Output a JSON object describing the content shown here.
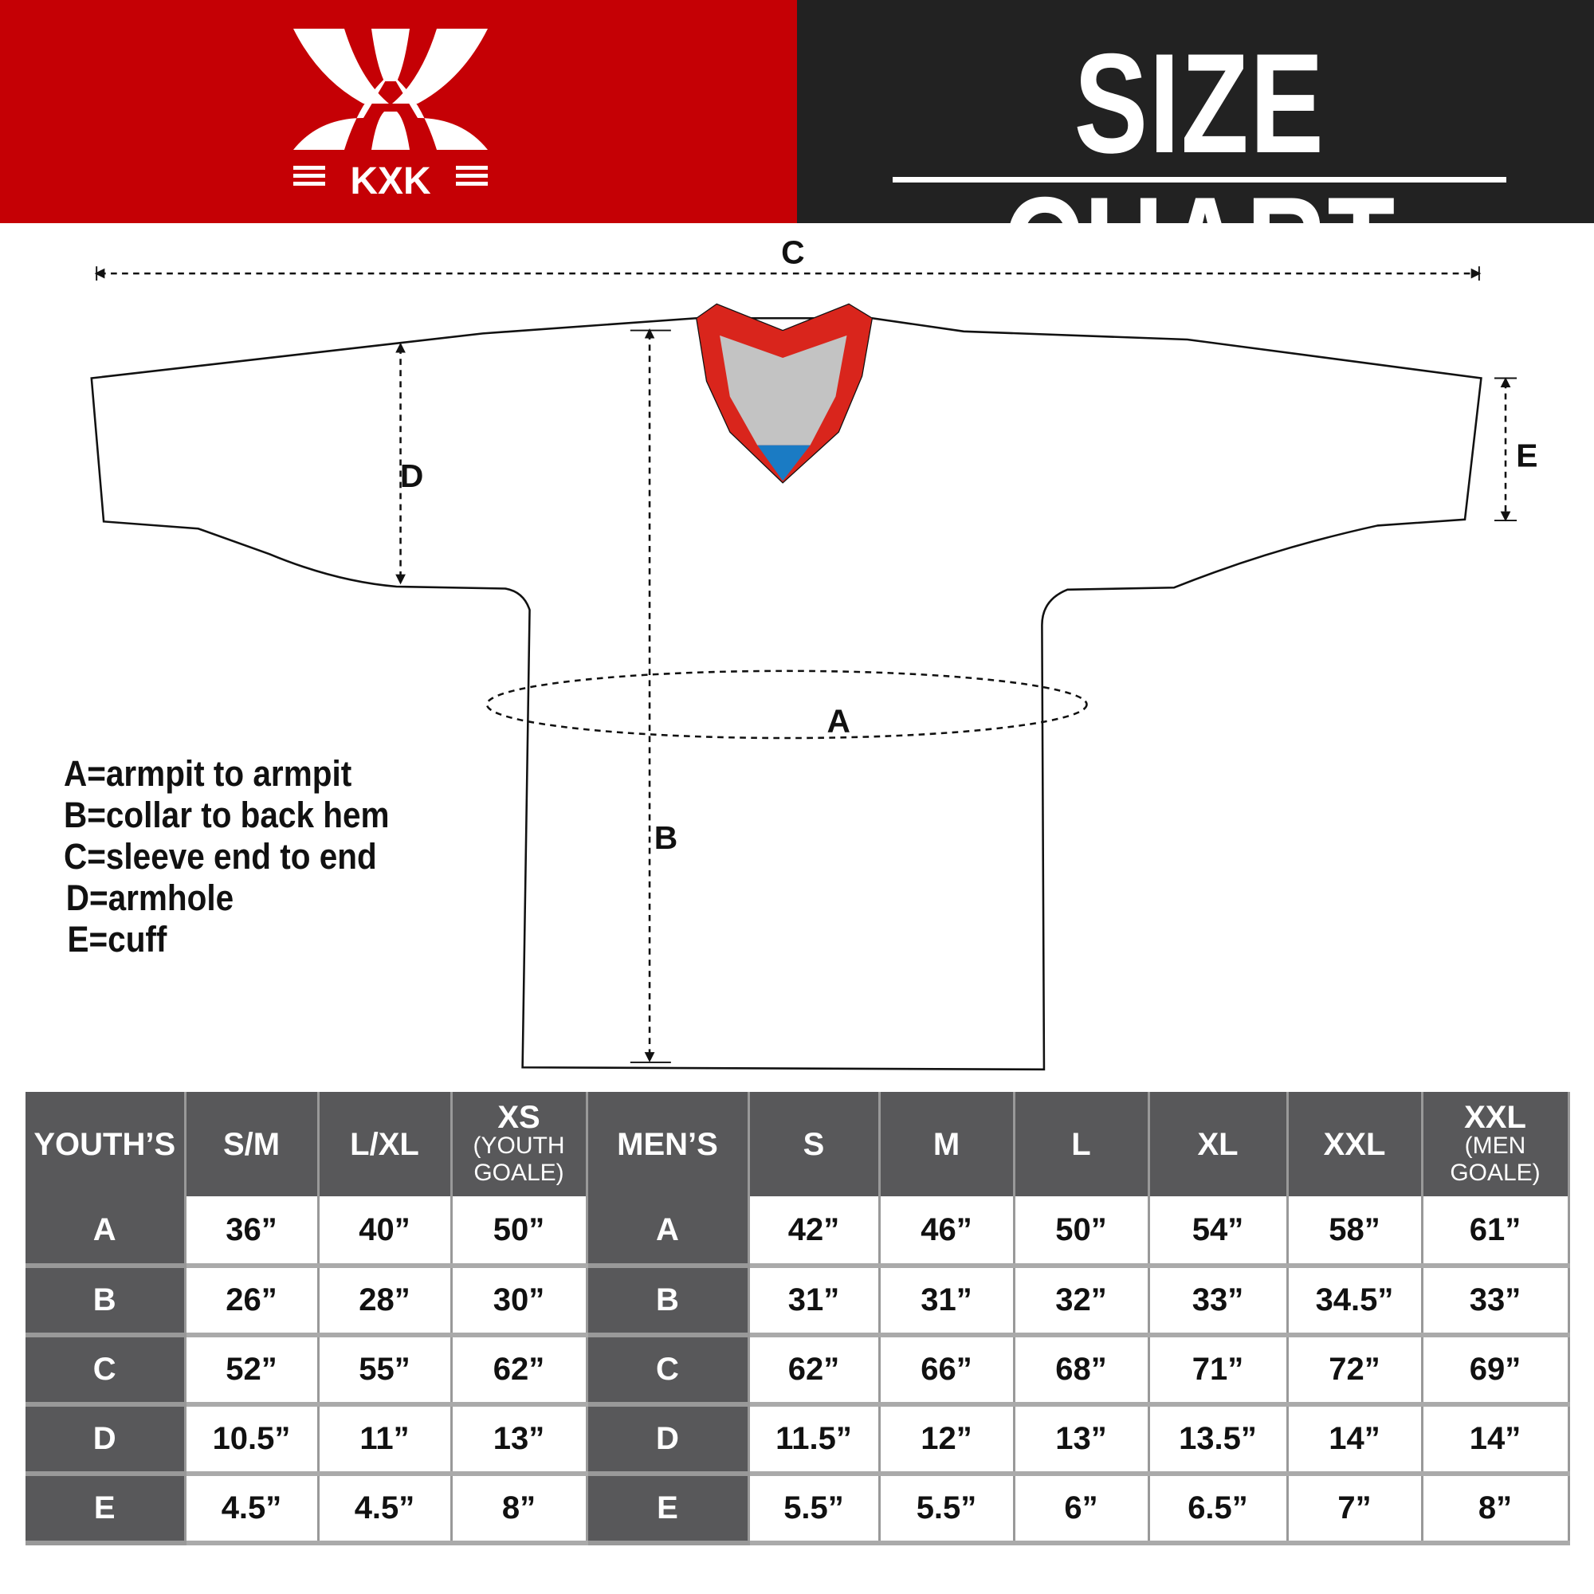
{
  "brand": {
    "logo_text": "KXK",
    "color": "#c50005"
  },
  "header": {
    "title": "SIZE CHART"
  },
  "diagram": {
    "labels": {
      "a": "A",
      "b": "B",
      "c": "C",
      "d": "D",
      "e": "E"
    }
  },
  "legend": [
    "A=armpit to armpit",
    "B=collar to back hem",
    "C=sleeve end to end",
    "D=armhole",
    "E=cuff"
  ],
  "table": {
    "youth": {
      "header": "YOUTH’S",
      "sizes": [
        {
          "main": "S/M",
          "sub": ""
        },
        {
          "main": "L/XL",
          "sub": ""
        },
        {
          "main": "XS",
          "sub": "(YOUTH GOALE)"
        }
      ]
    },
    "men": {
      "header": "MEN’S",
      "sizes": [
        {
          "main": "S",
          "sub": ""
        },
        {
          "main": "M",
          "sub": ""
        },
        {
          "main": "L",
          "sub": ""
        },
        {
          "main": "XL",
          "sub": ""
        },
        {
          "main": "XXL",
          "sub": ""
        },
        {
          "main": "XXL",
          "sub": "(MEN GOALE)"
        }
      ]
    },
    "rows": [
      {
        "label": "A",
        "youth": [
          "36”",
          "40”",
          "50”"
        ],
        "men": [
          "42”",
          "46”",
          "50”",
          "54”",
          "58”",
          "61”"
        ]
      },
      {
        "label": "B",
        "youth": [
          "26”",
          "28”",
          "30”"
        ],
        "men": [
          "31”",
          "31”",
          "32”",
          "33”",
          "34.5”",
          "33”"
        ]
      },
      {
        "label": "C",
        "youth": [
          "52”",
          "55”",
          "62”"
        ],
        "men": [
          "62”",
          "66”",
          "68”",
          "71”",
          "72”",
          "69”"
        ]
      },
      {
        "label": "D",
        "youth": [
          "10.5”",
          "11”",
          "13”"
        ],
        "men": [
          "11.5”",
          "12”",
          "13”",
          "13.5”",
          "14”",
          "14”"
        ]
      },
      {
        "label": "E",
        "youth": [
          "4.5”",
          "4.5”",
          "8”"
        ],
        "men": [
          "5.5”",
          "5.5”",
          "6”",
          "6.5”",
          "7”",
          "8”"
        ]
      }
    ]
  }
}
